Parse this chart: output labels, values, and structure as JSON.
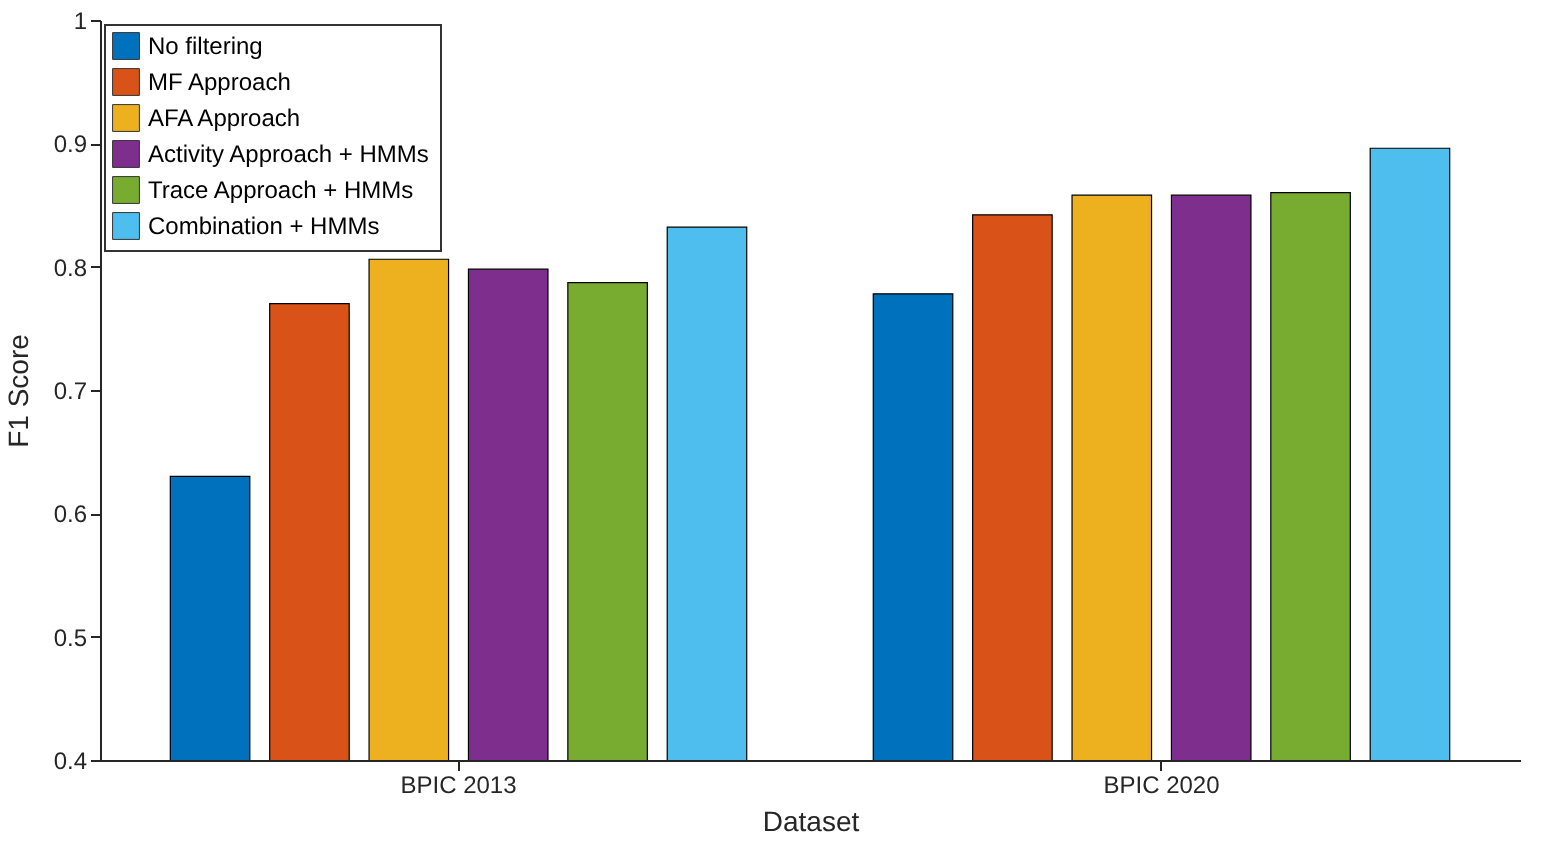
{
  "chart_data": {
    "type": "bar",
    "categories": [
      "BPIC 2013",
      "BPIC 2020"
    ],
    "xlabel": "Dataset",
    "ylabel": "F1 Score",
    "ylim": [
      0.4,
      1
    ],
    "yticks": [
      0.4,
      0.5,
      0.6,
      0.7,
      0.8,
      0.9,
      1
    ],
    "legend": "top left",
    "series": [
      {
        "name": "No filtering",
        "color": "#0072bd",
        "values": [
          0.63,
          0.778
        ]
      },
      {
        "name": "MF Approach",
        "color": "#d95319",
        "values": [
          0.77,
          0.842
        ]
      },
      {
        "name": "AFA Approach",
        "color": "#edb120",
        "values": [
          0.806,
          0.858
        ]
      },
      {
        "name": "Activity Approach + HMMs",
        "color": "#7e2f8e",
        "values": [
          0.798,
          0.858
        ]
      },
      {
        "name": "Trace Approach + HMMs",
        "color": "#77ac30",
        "values": [
          0.787,
          0.86
        ]
      },
      {
        "name": "Combination + HMMs",
        "color": "#4dbeee",
        "values": [
          0.832,
          0.896
        ]
      }
    ]
  }
}
